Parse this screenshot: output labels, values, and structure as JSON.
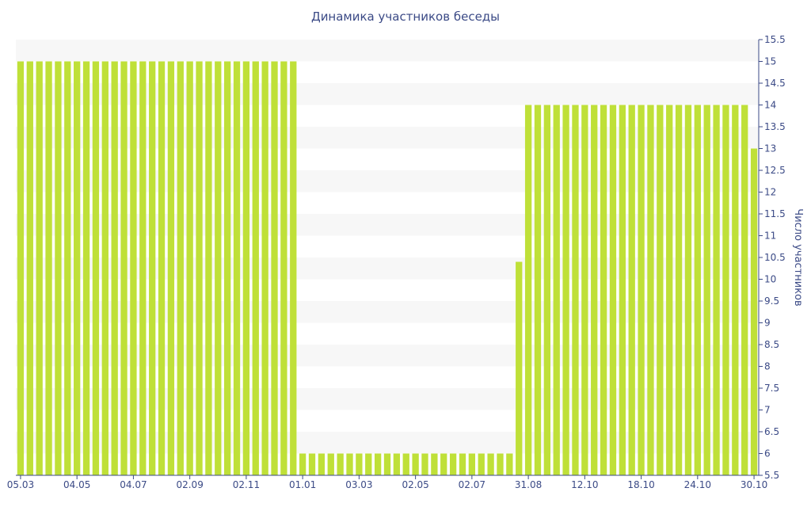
{
  "colors": {
    "bar": "#bfe038",
    "band": "#f7f7f7",
    "axis": "#3b4a86",
    "text": "#3b4a86"
  },
  "chart_data": {
    "type": "bar",
    "title": "Динамика участников беседы",
    "xlabel": "",
    "ylabel": "Число участников",
    "ylim": [
      5.5,
      15.5
    ],
    "y_ticks": [
      "5.5",
      "6",
      "6.5",
      "7",
      "7.5",
      "8",
      "8.5",
      "9",
      "9.5",
      "10",
      "10.5",
      "11",
      "11.5",
      "12",
      "12.5",
      "13",
      "13.5",
      "14",
      "14.5",
      "15",
      "15.5"
    ],
    "x_tick_labels": [
      {
        "label": "05.03",
        "index": 0
      },
      {
        "label": "04.05",
        "index": 6
      },
      {
        "label": "04.07",
        "index": 12
      },
      {
        "label": "02.09",
        "index": 18
      },
      {
        "label": "02.11",
        "index": 24
      },
      {
        "label": "01.01",
        "index": 30
      },
      {
        "label": "03.03",
        "index": 36
      },
      {
        "label": "02.05",
        "index": 42
      },
      {
        "label": "02.07",
        "index": 48
      },
      {
        "label": "31.08",
        "index": 54
      },
      {
        "label": "12.10",
        "index": 60
      },
      {
        "label": "18.10",
        "index": 66
      },
      {
        "label": "24.10",
        "index": 72
      },
      {
        "label": "30.10",
        "index": 78
      }
    ],
    "grid": "horizontal alternating bands",
    "series": [
      {
        "values": [
          15,
          15,
          15,
          15,
          15,
          15,
          15,
          15,
          15,
          15,
          15,
          15,
          15,
          15,
          15,
          15,
          15,
          15,
          15,
          15,
          15,
          15,
          15,
          15,
          15,
          15,
          15,
          15,
          15,
          15,
          6,
          6,
          6,
          6,
          6,
          6,
          6,
          6,
          6,
          6,
          6,
          6,
          6,
          6,
          6,
          6,
          6,
          6,
          6,
          6,
          6,
          6,
          6,
          10.4,
          14,
          14,
          14,
          14,
          14,
          14,
          14,
          14,
          14,
          14,
          14,
          14,
          14,
          14,
          14,
          14,
          14,
          14,
          14,
          14,
          14,
          14,
          14,
          14,
          13
        ]
      }
    ]
  }
}
